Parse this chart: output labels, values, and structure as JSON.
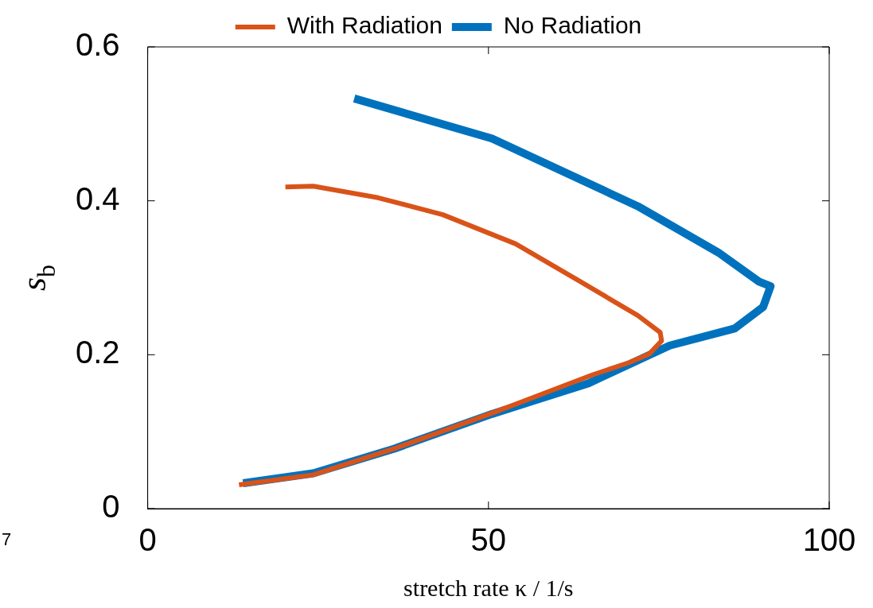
{
  "chart_data": {
    "type": "line",
    "xlabel": "stretch rate κ / 1/s",
    "ylabel": "s$_{b}$",
    "xlim": [
      0,
      100
    ],
    "ylim": [
      0,
      0.6
    ],
    "xticks": [
      0,
      50,
      100
    ],
    "yticks": [
      0,
      0.2,
      0.4,
      0.6
    ],
    "grid": false,
    "legend": "top",
    "marker": "none",
    "line_style": "solid",
    "annotations": [
      "7"
    ],
    "series": [
      {
        "name": "With Radiation",
        "color": "#d95319",
        "x": [
          20.2,
          24.3,
          33.8,
          43.3,
          54,
          63.5,
          71.9,
          75.2,
          75.4,
          73.6,
          70.7,
          65.3,
          50.5,
          36.2,
          24.3,
          13.4
        ],
        "values": [
          0.418,
          0.419,
          0.404,
          0.382,
          0.344,
          0.295,
          0.251,
          0.229,
          0.218,
          0.201,
          0.19,
          0.174,
          0.124,
          0.078,
          0.044,
          0.031
        ]
      },
      {
        "name": "No Radiation",
        "color": "#0072bd",
        "x": [
          30.3,
          50.5,
          71.9,
          83.7,
          89.7,
          91.4,
          90.3,
          86.1,
          76.6,
          64.7,
          50.5,
          36.2,
          24.3,
          14
        ],
        "values": [
          0.533,
          0.481,
          0.393,
          0.333,
          0.295,
          0.289,
          0.262,
          0.234,
          0.212,
          0.163,
          0.123,
          0.078,
          0.046,
          0.033
        ]
      }
    ]
  }
}
